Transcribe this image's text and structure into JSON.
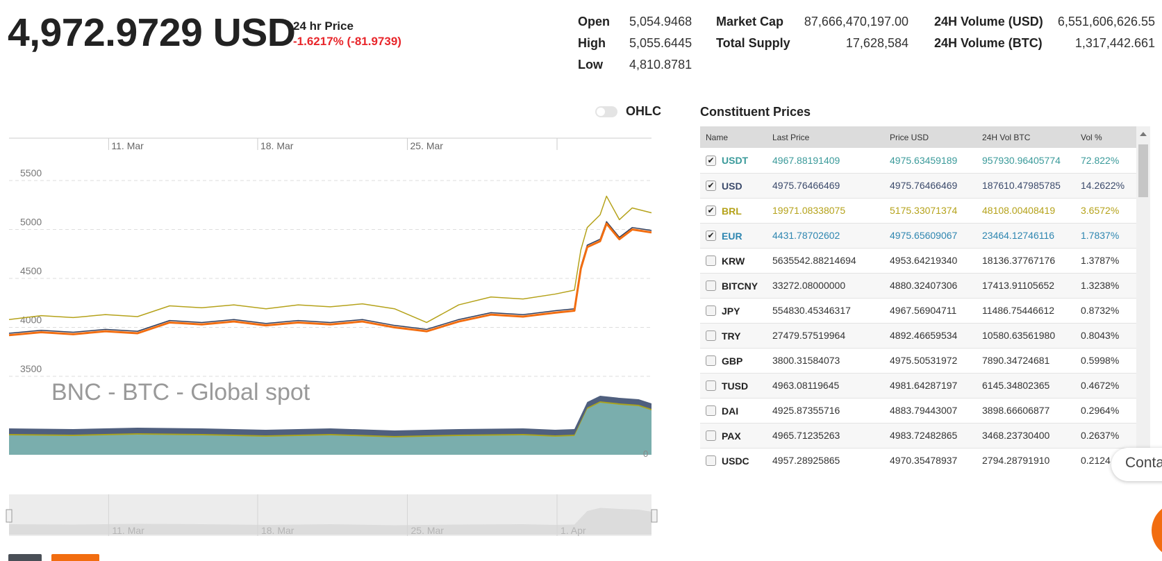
{
  "header": {
    "price": "4,972.9729 USD",
    "price_24h_label": "24 hr Price",
    "price_24h_change": "-1.6217% (-81.9739)",
    "change_color": "#e8262b"
  },
  "stats": {
    "col1": [
      {
        "label": "Open",
        "value": "5,054.9468"
      },
      {
        "label": "High",
        "value": "5,055.6445"
      },
      {
        "label": "Low",
        "value": "4,810.8781"
      }
    ],
    "col2": [
      {
        "label": "Market Cap",
        "value": "87,666,470,197.00"
      },
      {
        "label": "Total Supply",
        "value": "17,628,584"
      }
    ],
    "col3": [
      {
        "label": "24H Volume (USD)",
        "value": "6,551,606,626.55"
      },
      {
        "label": "24H Volume (BTC)",
        "value": "1,317,442.661"
      }
    ]
  },
  "ohlc_toggle": {
    "label": "OHLC",
    "on": false
  },
  "chart_data": {
    "type": "line",
    "watermark": "BNC - BTC - Global spot",
    "x_tick_labels": [
      "11. Mar",
      "18. Mar",
      "25. Mar"
    ],
    "navigator_tick_labels": [
      "11. Mar",
      "18. Mar",
      "25. Mar",
      "1. Apr"
    ],
    "y_tick_labels": [
      "5500",
      "5000",
      "4500",
      "4000",
      "3500"
    ],
    "ylim": [
      3500,
      5500
    ],
    "volume_axis_label": "0",
    "grid": true,
    "colors": {
      "main": "#f26d10",
      "brl": "#b5a21a",
      "usd": "#2f3d5c",
      "usdt": "#4a9aa0",
      "volume_outer": "#4f5f7e",
      "volume_mid": "#a8a21f",
      "volume_inner": "#7aaead"
    },
    "series": [
      {
        "x": [
          0,
          5,
          10,
          15,
          20,
          25,
          30,
          35,
          40,
          45,
          50,
          55,
          60,
          65,
          70,
          75,
          80,
          85,
          88,
          89,
          90,
          92,
          93,
          95,
          97,
          100
        ],
        "values": [
          3920,
          3950,
          3930,
          3960,
          3940,
          4050,
          4030,
          4060,
          4020,
          4050,
          4030,
          4060,
          4000,
          3960,
          4060,
          4130,
          4110,
          4150,
          4170,
          4600,
          4820,
          4880,
          5060,
          4900,
          5000,
          4970
        ]
      },
      {
        "x": [
          0,
          5,
          10,
          15,
          20,
          25,
          30,
          35,
          40,
          45,
          50,
          55,
          60,
          65,
          70,
          75,
          80,
          85,
          88,
          89,
          90,
          92,
          93,
          95,
          97,
          100
        ],
        "values": [
          4080,
          4120,
          4100,
          4130,
          4110,
          4220,
          4200,
          4230,
          4190,
          4230,
          4210,
          4240,
          4190,
          4050,
          4230,
          4310,
          4290,
          4340,
          4380,
          4790,
          5020,
          5150,
          5340,
          5100,
          5220,
          5170
        ]
      },
      {
        "x": [
          0,
          5,
          10,
          15,
          20,
          25,
          30,
          35,
          40,
          45,
          50,
          55,
          60,
          65,
          70,
          75,
          80,
          85,
          88,
          89,
          90,
          92,
          93,
          95,
          97,
          100
        ],
        "values": [
          3940,
          3970,
          3950,
          3980,
          3960,
          4070,
          4050,
          4080,
          4040,
          4070,
          4050,
          4080,
          4020,
          3980,
          4080,
          4150,
          4130,
          4170,
          4190,
          4620,
          4840,
          4900,
          5080,
          4920,
          5020,
          4990
        ]
      }
    ],
    "volume": {
      "x": [
        0,
        10,
        20,
        30,
        40,
        50,
        60,
        70,
        80,
        85,
        88,
        90,
        92,
        95,
        98,
        100
      ],
      "values": [
        30,
        29,
        31,
        30,
        28,
        30,
        27,
        29,
        30,
        28,
        29,
        68,
        77,
        74,
        72,
        66
      ]
    }
  },
  "constituent_prices": {
    "title": "Constituent Prices",
    "columns": [
      "Name",
      "Last Price",
      "Price USD",
      "24H Vol BTC",
      "Vol %"
    ],
    "rows": [
      {
        "name": "USDT",
        "last": "4967.88191409",
        "usd": "4975.63459189",
        "vol": "957930.96405774",
        "pct": "72.822%",
        "checked": true,
        "color": "#3a9a9a"
      },
      {
        "name": "USD",
        "last": "4975.76466469",
        "usd": "4975.76466469",
        "vol": "187610.47985785",
        "pct": "14.2622%",
        "checked": true,
        "color": "#3b4a6b"
      },
      {
        "name": "BRL",
        "last": "19971.08338075",
        "usd": "5175.33071374",
        "vol": "48108.00408419",
        "pct": "3.6572%",
        "checked": true,
        "color": "#b5a21a"
      },
      {
        "name": "EUR",
        "last": "4431.78702602",
        "usd": "4975.65609067",
        "vol": "23464.12746116",
        "pct": "1.7837%",
        "checked": true,
        "color": "#2e86b0"
      },
      {
        "name": "KRW",
        "last": "5635542.88214694",
        "usd": "4953.64219340",
        "vol": "18136.37767176",
        "pct": "1.3787%",
        "checked": false,
        "color": "#222222"
      },
      {
        "name": "BITCNY",
        "last": "33272.08000000",
        "usd": "4880.32407306",
        "vol": "17413.91105652",
        "pct": "1.3238%",
        "checked": false,
        "color": "#222222"
      },
      {
        "name": "JPY",
        "last": "554830.45346317",
        "usd": "4967.56904711",
        "vol": "11486.75446612",
        "pct": "0.8732%",
        "checked": false,
        "color": "#222222"
      },
      {
        "name": "TRY",
        "last": "27479.57519964",
        "usd": "4892.46659534",
        "vol": "10580.63561980",
        "pct": "0.8043%",
        "checked": false,
        "color": "#222222"
      },
      {
        "name": "GBP",
        "last": "3800.31584073",
        "usd": "4975.50531972",
        "vol": "7890.34724681",
        "pct": "0.5998%",
        "checked": false,
        "color": "#222222"
      },
      {
        "name": "TUSD",
        "last": "4963.08119645",
        "usd": "4981.64287197",
        "vol": "6145.34802365",
        "pct": "0.4672%",
        "checked": false,
        "color": "#222222"
      },
      {
        "name": "DAI",
        "last": "4925.87355716",
        "usd": "4883.79443007",
        "vol": "3898.66606877",
        "pct": "0.2964%",
        "checked": false,
        "color": "#222222"
      },
      {
        "name": "PAX",
        "last": "4965.71235263",
        "usd": "4983.72482865",
        "vol": "3468.23730400",
        "pct": "0.2637%",
        "checked": false,
        "color": "#222222"
      },
      {
        "name": "USDC",
        "last": "4957.28925865",
        "usd": "4970.35478937",
        "vol": "2794.28791910",
        "pct": "0.2124",
        "checked": false,
        "color": "#222222"
      }
    ]
  },
  "contact": {
    "label": "Conta"
  }
}
